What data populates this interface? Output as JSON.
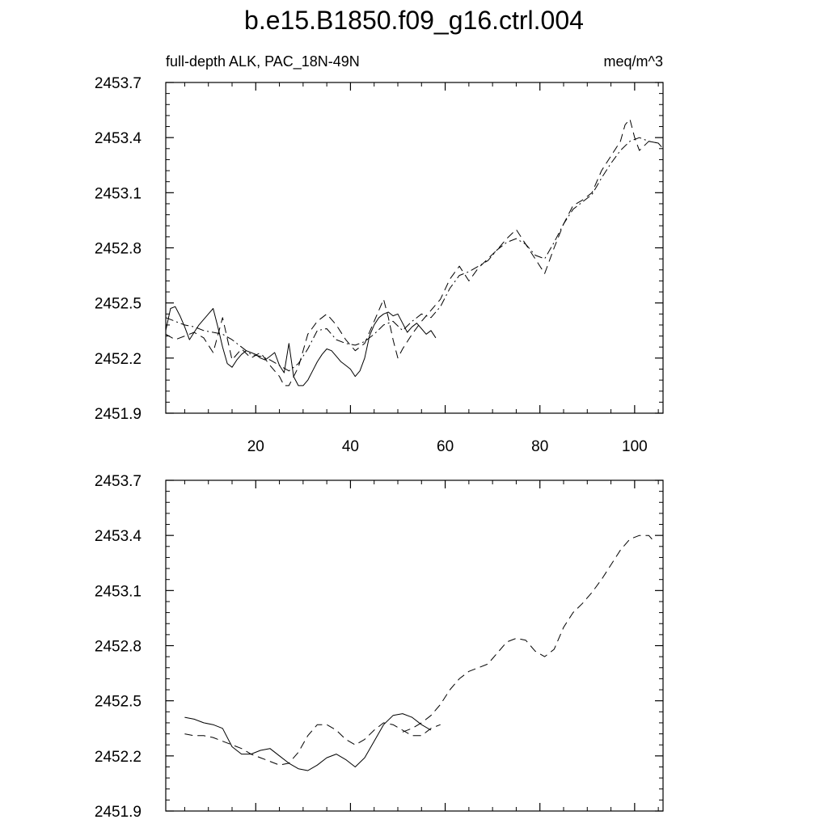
{
  "chart_data": {
    "title": "b.e15.B1850.f09_g16.ctrl.004",
    "left_string": "full-depth ALK, PAC_18N-49N",
    "right_string": "meq/m^3",
    "panels": [
      {
        "type": "line",
        "xlim": [
          1,
          106
        ],
        "ylim": [
          2451.9,
          2453.7
        ],
        "xticks": [
          20,
          40,
          60,
          80,
          100
        ],
        "xtick_labels": [
          "20",
          "40",
          "60",
          "80",
          "100"
        ],
        "yticks": [
          2451.9,
          2452.2,
          2452.5,
          2452.8,
          2453.1,
          2453.4,
          2453.7
        ],
        "ytick_labels": [
          "2451.9",
          "2452.2",
          "2452.5",
          "2452.8",
          "2453.1",
          "2453.4",
          "2453.7"
        ],
        "grid": false,
        "series": [
          {
            "style": "solid",
            "x": [
              1,
              2,
              3,
              4,
              5,
              6,
              7,
              8,
              9,
              10,
              11,
              12,
              13,
              14,
              15,
              16,
              17,
              18,
              19,
              20,
              21,
              22,
              23,
              24,
              25,
              26,
              27,
              28,
              29,
              30,
              31,
              32,
              33,
              34,
              35,
              36,
              37,
              38,
              39,
              40,
              41,
              42,
              43,
              44,
              45,
              46,
              47,
              48,
              49,
              50,
              51,
              52,
              53,
              54,
              55,
              56,
              57,
              58
            ],
            "y": [
              2452.35,
              2452.47,
              2452.48,
              2452.43,
              2452.37,
              2452.3,
              2452.34,
              2452.38,
              2452.41,
              2452.44,
              2452.47,
              2452.37,
              2452.26,
              2452.17,
              2452.15,
              2452.19,
              2452.22,
              2452.24,
              2452.23,
              2452.22,
              2452.2,
              2452.19,
              2452.21,
              2452.23,
              2452.16,
              2452.12,
              2452.28,
              2452.1,
              2452.05,
              2452.05,
              2452.08,
              2452.13,
              2452.18,
              2452.22,
              2452.25,
              2452.24,
              2452.21,
              2452.18,
              2452.16,
              2452.14,
              2452.1,
              2452.13,
              2452.2,
              2452.32,
              2452.38,
              2452.42,
              2452.44,
              2452.45,
              2452.43,
              2452.44,
              2452.39,
              2452.34,
              2452.37,
              2452.39,
              2452.36,
              2452.33,
              2452.35,
              2452.31
            ]
          },
          {
            "style": "dashed",
            "x": [
              1,
              3,
              5,
              7,
              9,
              11,
              13,
              15,
              17,
              19,
              21,
              23,
              25,
              26,
              27,
              29,
              31,
              33,
              35,
              37,
              39,
              41,
              43,
              45,
              47,
              48,
              49,
              50,
              51,
              53,
              55,
              57,
              59,
              61,
              63,
              65,
              67,
              69,
              71,
              73,
              75,
              77,
              79,
              81,
              83,
              85,
              87,
              89,
              91,
              93,
              95,
              97,
              98,
              99,
              100,
              101,
              103,
              105,
              106
            ],
            "y": [
              2452.33,
              2452.3,
              2452.32,
              2452.34,
              2452.31,
              2452.23,
              2452.42,
              2452.19,
              2452.25,
              2452.2,
              2452.23,
              2452.16,
              2452.1,
              2452.05,
              2452.05,
              2452.15,
              2452.33,
              2452.4,
              2452.44,
              2452.38,
              2452.3,
              2452.24,
              2452.28,
              2452.4,
              2452.52,
              2452.42,
              2452.3,
              2452.2,
              2452.25,
              2452.33,
              2452.4,
              2452.46,
              2452.52,
              2452.63,
              2452.7,
              2452.62,
              2452.69,
              2452.74,
              2452.79,
              2452.85,
              2452.9,
              2452.82,
              2452.74,
              2452.66,
              2452.8,
              2452.93,
              2453.03,
              2453.06,
              2453.1,
              2453.22,
              2453.3,
              2453.38,
              2453.47,
              2453.5,
              2453.4,
              2453.33,
              2453.38,
              2453.37,
              2453.34
            ]
          },
          {
            "style": "dashdot",
            "x": [
              1,
              3,
              5,
              7,
              9,
              11,
              13,
              15,
              17,
              19,
              21,
              23,
              25,
              27,
              29,
              31,
              33,
              35,
              37,
              39,
              41,
              43,
              45,
              47,
              49,
              51,
              53,
              55,
              57,
              59,
              61,
              63,
              65,
              67,
              69,
              71,
              73,
              75,
              77,
              79,
              81,
              83,
              85,
              87,
              89,
              91,
              93,
              95,
              97,
              99,
              101,
              103,
              105
            ],
            "y": [
              2452.42,
              2452.4,
              2452.38,
              2452.37,
              2452.35,
              2452.34,
              2452.33,
              2452.3,
              2452.26,
              2452.22,
              2452.21,
              2452.19,
              2452.16,
              2452.13,
              2452.17,
              2452.25,
              2452.35,
              2452.36,
              2452.3,
              2452.28,
              2452.27,
              2452.29,
              2452.33,
              2452.38,
              2452.4,
              2452.35,
              2452.4,
              2452.44,
              2452.42,
              2452.48,
              2452.58,
              2452.65,
              2452.67,
              2452.7,
              2452.73,
              2452.79,
              2452.83,
              2452.85,
              2452.82,
              2452.76,
              2452.74,
              2452.83,
              2452.93,
              2453.01,
              2453.05,
              2453.09,
              2453.18,
              2453.26,
              2453.33,
              2453.38,
              2453.4,
              2453.38,
              2453.37
            ]
          }
        ]
      },
      {
        "type": "line",
        "xlim": [
          1,
          106
        ],
        "ylim": [
          2451.9,
          2453.7
        ],
        "xticks": [
          20,
          40,
          60,
          80,
          100
        ],
        "yticks": [
          2451.9,
          2452.2,
          2452.5,
          2452.8,
          2453.1,
          2453.4,
          2453.7
        ],
        "ytick_labels": [
          "2451.9",
          "2452.2",
          "2452.5",
          "2452.8",
          "2453.1",
          "2453.4",
          "2453.7"
        ],
        "grid": false,
        "series": [
          {
            "style": "solid",
            "x": [
              5,
              7,
              9,
              11,
              13,
              15,
              17,
              19,
              21,
              23,
              25,
              27,
              29,
              31,
              33,
              35,
              37,
              39,
              41,
              43,
              45,
              47,
              49,
              51,
              53,
              55,
              57
            ],
            "y": [
              2452.41,
              2452.4,
              2452.38,
              2452.37,
              2452.35,
              2452.25,
              2452.21,
              2452.21,
              2452.23,
              2452.24,
              2452.2,
              2452.16,
              2452.13,
              2452.12,
              2452.15,
              2452.19,
              2452.21,
              2452.18,
              2452.14,
              2452.19,
              2452.28,
              2452.37,
              2452.42,
              2452.43,
              2452.41,
              2452.37,
              2452.34
            ]
          },
          {
            "style": "dashed",
            "x": [
              5,
              7,
              9,
              11,
              13,
              15,
              17,
              19,
              21,
              23,
              25,
              27,
              29,
              31,
              33,
              35,
              37,
              39,
              41,
              43,
              45,
              47,
              49,
              51,
              53,
              55,
              57,
              59
            ],
            "y": [
              2452.32,
              2452.31,
              2452.31,
              2452.3,
              2452.28,
              2452.26,
              2452.24,
              2452.21,
              2452.19,
              2452.17,
              2452.15,
              2452.16,
              2452.22,
              2452.31,
              2452.37,
              2452.37,
              2452.34,
              2452.29,
              2452.26,
              2452.29,
              2452.34,
              2452.38,
              2452.37,
              2452.34,
              2452.31,
              2452.31,
              2452.35,
              2452.37
            ]
          },
          {
            "style": "dashed",
            "x": [
              51,
              53,
              55,
              57,
              59,
              61,
              63,
              65,
              67,
              69,
              71,
              73,
              75,
              77,
              79,
              81,
              83,
              85,
              87,
              89,
              91,
              93,
              95,
              97,
              99,
              101,
              103,
              104
            ],
            "y": [
              2452.33,
              2452.35,
              2452.38,
              2452.42,
              2452.48,
              2452.56,
              2452.62,
              2452.66,
              2452.68,
              2452.7,
              2452.76,
              2452.82,
              2452.84,
              2452.83,
              2452.77,
              2452.74,
              2452.78,
              2452.9,
              2452.98,
              2453.03,
              2453.09,
              2453.16,
              2453.24,
              2453.32,
              2453.38,
              2453.4,
              2453.4,
              2453.37
            ]
          }
        ]
      }
    ]
  }
}
